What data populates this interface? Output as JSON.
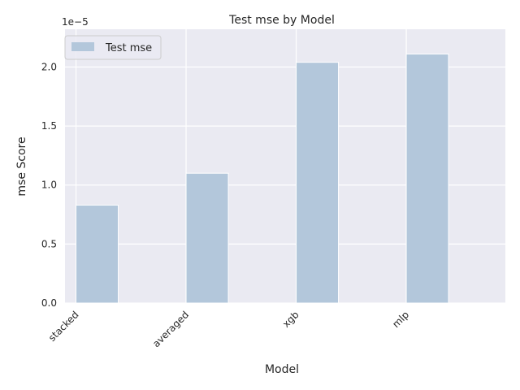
{
  "chart_data": {
    "type": "bar",
    "title": "Test mse by Model",
    "xlabel": "Model",
    "ylabel": "mse Score",
    "offset_text": "1e−5",
    "scale": 1e-05,
    "categories": [
      "stacked",
      "averaged",
      "xgb",
      "mlp"
    ],
    "series": [
      {
        "name": "Test mse",
        "values": [
          8.3e-06,
          1.1e-05,
          2.04e-05,
          2.11e-05
        ]
      }
    ],
    "ylim": [
      0,
      2.32e-05
    ],
    "yticks": [
      0,
      5e-06,
      1e-05,
      1.5e-05,
      2e-05
    ],
    "ytick_labels": [
      "0.0",
      "0.5",
      "1.0",
      "1.5",
      "2.0"
    ],
    "grid": true,
    "legend_position": "top-left",
    "colors": {
      "background": "#EAEAF2",
      "bar": "#B3C7DB",
      "grid": "#FFFFFF",
      "text": "#262626"
    }
  }
}
